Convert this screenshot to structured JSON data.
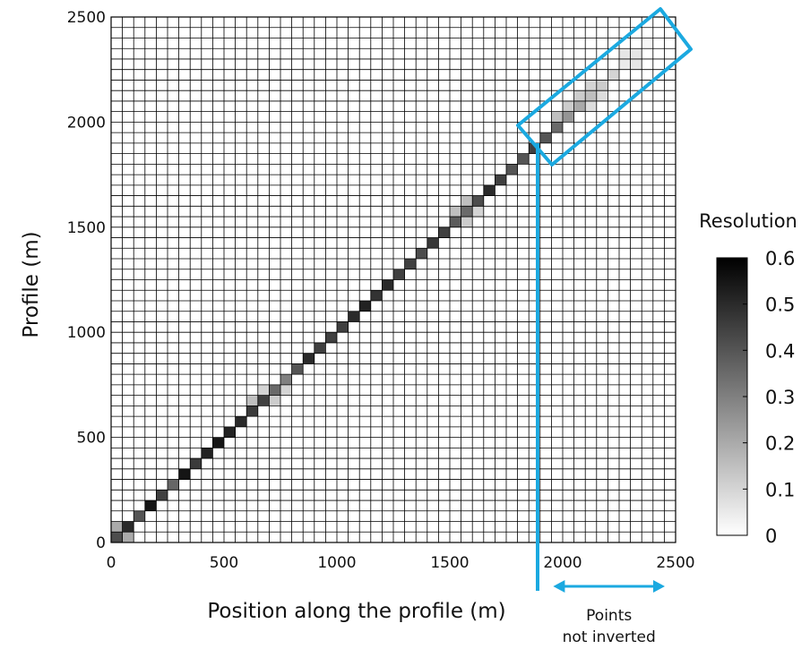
{
  "chart_data": {
    "type": "heatmap",
    "xlabel": "Position along the profile (m)",
    "ylabel": "Profile (m)",
    "xlim": [
      0,
      2500
    ],
    "ylim": [
      0,
      2500
    ],
    "xticks": [
      "0",
      "500",
      "1000",
      "1500",
      "2000",
      "2500"
    ],
    "yticks": [
      "0",
      "500",
      "1000",
      "1500",
      "2000",
      "2500"
    ],
    "grid": true,
    "cell_size_m": 50,
    "colorbar": {
      "title": "Resolution",
      "range": [
        0,
        0.6
      ],
      "ticks": [
        "0",
        "0.1",
        "0.2",
        "0.3",
        "0.4",
        "0.5",
        "0.6"
      ],
      "colormap": "white-to-black"
    },
    "diagonal_resolution": {
      "positions_m": [
        25,
        75,
        125,
        175,
        225,
        275,
        325,
        375,
        425,
        475,
        525,
        575,
        625,
        675,
        725,
        775,
        825,
        875,
        925,
        975,
        1025,
        1075,
        1125,
        1175,
        1225,
        1275,
        1325,
        1375,
        1425,
        1475,
        1525,
        1575,
        1625,
        1675,
        1725,
        1775,
        1825,
        1875,
        1925,
        1975,
        2025,
        2075,
        2125,
        2175,
        2225,
        2275,
        2325,
        2375,
        2425,
        2475
      ],
      "values": [
        0.42,
        0.5,
        0.4,
        0.55,
        0.45,
        0.36,
        0.55,
        0.46,
        0.52,
        0.55,
        0.52,
        0.5,
        0.46,
        0.45,
        0.35,
        0.3,
        0.4,
        0.5,
        0.45,
        0.45,
        0.45,
        0.5,
        0.52,
        0.48,
        0.5,
        0.45,
        0.45,
        0.42,
        0.47,
        0.45,
        0.38,
        0.35,
        0.42,
        0.5,
        0.45,
        0.4,
        0.4,
        0.45,
        0.4,
        0.35,
        0.25,
        0.2,
        0.15,
        0.12,
        0.1,
        0.05,
        0.06,
        0.02,
        0.0,
        0.0
      ],
      "off_diagonal": [
        {
          "x": 25,
          "y": 75,
          "value": 0.2
        },
        {
          "x": 75,
          "y": 25,
          "value": 0.2
        },
        {
          "x": 625,
          "y": 675,
          "value": 0.15
        },
        {
          "x": 675,
          "y": 725,
          "value": 0.1
        },
        {
          "x": 725,
          "y": 675,
          "value": 0.12
        },
        {
          "x": 775,
          "y": 725,
          "value": 0.1
        },
        {
          "x": 1525,
          "y": 1575,
          "value": 0.15
        },
        {
          "x": 1575,
          "y": 1625,
          "value": 0.15
        },
        {
          "x": 1575,
          "y": 1525,
          "value": 0.12
        },
        {
          "x": 1625,
          "y": 1575,
          "value": 0.1
        },
        {
          "x": 1975,
          "y": 2025,
          "value": 0.15
        },
        {
          "x": 2025,
          "y": 2075,
          "value": 0.12
        },
        {
          "x": 2075,
          "y": 2125,
          "value": 0.12
        },
        {
          "x": 2125,
          "y": 2175,
          "value": 0.1
        },
        {
          "x": 2175,
          "y": 2125,
          "value": 0.08
        },
        {
          "x": 2125,
          "y": 2075,
          "value": 0.08
        },
        {
          "x": 2325,
          "y": 2275,
          "value": 0.06
        },
        {
          "x": 2275,
          "y": 2325,
          "value": 0.06
        }
      ]
    },
    "annotations": [
      {
        "text_lines": [
          "Points",
          "not inverted"
        ],
        "x_range_m": [
          1950,
          2500
        ],
        "color": "#1ba9e0"
      }
    ]
  }
}
